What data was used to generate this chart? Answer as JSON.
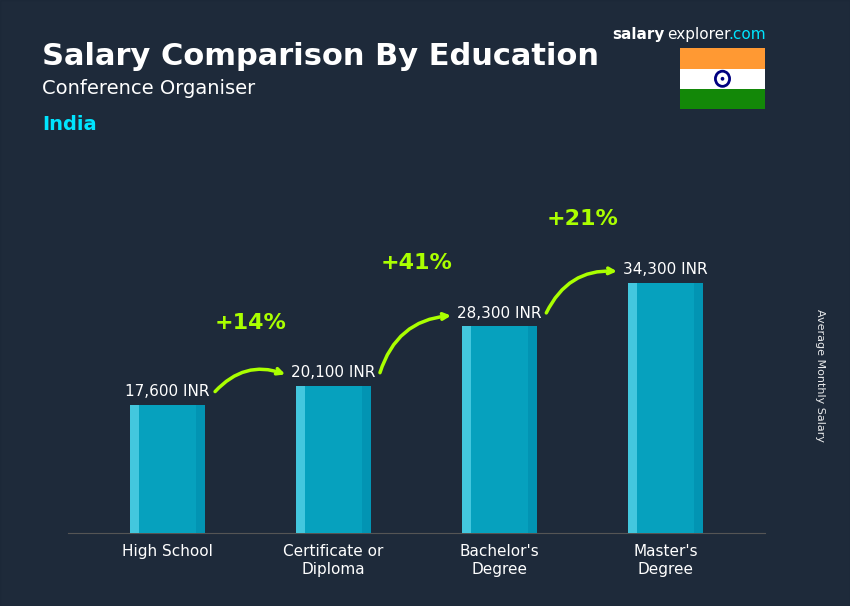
{
  "title_bold": "Salary Comparison By Education",
  "subtitle": "Conference Organiser",
  "country": "India",
  "ylabel": "Average Monthly Salary",
  "categories": [
    "High School",
    "Certificate or\nDiploma",
    "Bachelor's\nDegree",
    "Master's\nDegree"
  ],
  "values": [
    17600,
    20100,
    28300,
    34300
  ],
  "value_labels": [
    "17,600 INR",
    "20,100 INR",
    "28,300 INR",
    "34,300 INR"
  ],
  "pct_labels": [
    "+14%",
    "+41%",
    "+21%"
  ],
  "bar_color_top": "#00e5ff",
  "bar_color_bottom": "#0077aa",
  "bar_color_mid": "#00bcd4",
  "background_color": "#1a1a2e",
  "text_color_white": "#ffffff",
  "text_color_cyan": "#00e5ff",
  "text_color_green": "#aaff00",
  "arrow_color": "#aaff00",
  "website_salary": "salary",
  "website_explorer": "explorer",
  "website_com": ".com",
  "figsize": [
    8.5,
    6.06
  ],
  "dpi": 100
}
